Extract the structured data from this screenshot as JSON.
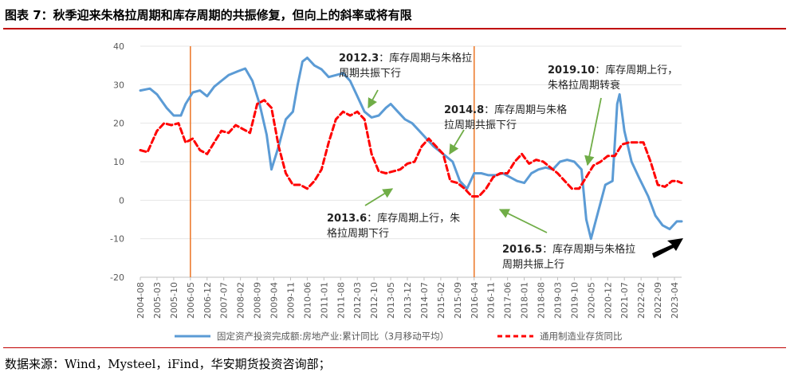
{
  "figure": {
    "title": "图表 7：秋季迎来朱格拉周期和库存周期的共振修复，但向上的斜率或将有限",
    "source": "数据来源：Wind，Mysteel，iFind，华安期货投资咨询部；"
  },
  "annotations": [
    {
      "date": "2012.3",
      "text1": "：库存周期与朱格拉",
      "text2": "周期共振下行"
    },
    {
      "date": "2014.8",
      "text1": "：库存周期与朱格",
      "text2": "拉周期共振下行"
    },
    {
      "date": "2019.10",
      "text1": "：库存周期上行，",
      "text2": "朱格拉周期转衰"
    },
    {
      "date": "2013.6",
      "text1": "：库存周期上行，朱",
      "text2": "格拉周期下行"
    },
    {
      "date": "2016.5",
      "text1": "：库存周期与朱格拉",
      "text2": "周期共振上行"
    }
  ],
  "chart_data": {
    "type": "line",
    "ylim": [
      -20,
      40
    ],
    "yticks": [
      -20,
      -10,
      0,
      10,
      20,
      30,
      40
    ],
    "x_start": "2004-08",
    "x_end": "2023-07",
    "xtick_labels": [
      "2004-08",
      "2005-03",
      "2005-10",
      "2006-05",
      "2006-12",
      "2007-07",
      "2008-02",
      "2008-09",
      "2009-04",
      "2009-11",
      "2010-06",
      "2011-01",
      "2011-08",
      "2012-03",
      "2012-10",
      "2013-05",
      "2013-12",
      "2014-07",
      "2015-02",
      "2015-09",
      "2016-04",
      "2016-11",
      "2017-06",
      "2018-01",
      "2018-08",
      "2019-03",
      "2019-10",
      "2020-05",
      "2020-12",
      "2021-07",
      "2022-02",
      "2022-09",
      "2023-04"
    ],
    "vertical_markers": [
      "2006-05",
      "2016-04"
    ],
    "legend_position": "bottom",
    "colors": {
      "series1": "#5b9bd5",
      "series2": "#ff0000",
      "markers": "#ed7d31",
      "arrows": "#70ad47"
    },
    "series": [
      {
        "name": "固定资产投资完成额:房地产业:累计同比（3月移动平均）",
        "style": "solid",
        "points": [
          [
            "2004-08",
            28.5
          ],
          [
            "2004-12",
            29.0
          ],
          [
            "2005-03",
            27.5
          ],
          [
            "2005-07",
            24
          ],
          [
            "2005-10",
            22
          ],
          [
            "2006-01",
            22
          ],
          [
            "2006-03",
            25
          ],
          [
            "2006-06",
            28
          ],
          [
            "2006-09",
            28.5
          ],
          [
            "2006-12",
            27
          ],
          [
            "2007-03",
            29.5
          ],
          [
            "2007-06",
            31
          ],
          [
            "2007-09",
            32.5
          ],
          [
            "2008-01",
            33.5
          ],
          [
            "2008-04",
            34.2
          ],
          [
            "2008-07",
            31
          ],
          [
            "2008-10",
            25
          ],
          [
            "2009-01",
            17
          ],
          [
            "2009-03",
            8
          ],
          [
            "2009-06",
            14
          ],
          [
            "2009-09",
            21
          ],
          [
            "2009-12",
            23
          ],
          [
            "2010-02",
            30
          ],
          [
            "2010-04",
            36
          ],
          [
            "2010-06",
            37
          ],
          [
            "2010-09",
            35
          ],
          [
            "2010-12",
            34
          ],
          [
            "2011-03",
            32
          ],
          [
            "2011-06",
            32.5
          ],
          [
            "2011-09",
            33
          ],
          [
            "2011-12",
            31
          ],
          [
            "2012-03",
            27
          ],
          [
            "2012-06",
            23
          ],
          [
            "2012-09",
            21.5
          ],
          [
            "2012-12",
            22
          ],
          [
            "2013-03",
            24
          ],
          [
            "2013-05",
            25
          ],
          [
            "2013-08",
            23
          ],
          [
            "2013-11",
            21
          ],
          [
            "2014-02",
            20
          ],
          [
            "2014-05",
            18
          ],
          [
            "2014-08",
            16
          ],
          [
            "2014-11",
            14
          ],
          [
            "2015-03",
            12
          ],
          [
            "2015-07",
            10
          ],
          [
            "2015-10",
            5
          ],
          [
            "2016-01",
            3
          ],
          [
            "2016-04",
            7
          ],
          [
            "2016-07",
            7
          ],
          [
            "2016-10",
            6.5
          ],
          [
            "2017-01",
            6.5
          ],
          [
            "2017-04",
            7
          ],
          [
            "2017-07",
            6
          ],
          [
            "2017-10",
            5
          ],
          [
            "2018-01",
            4.5
          ],
          [
            "2018-04",
            7
          ],
          [
            "2018-07",
            8
          ],
          [
            "2018-10",
            8.5
          ],
          [
            "2019-01",
            8
          ],
          [
            "2019-04",
            10
          ],
          [
            "2019-07",
            10.5
          ],
          [
            "2019-10",
            10
          ],
          [
            "2020-01",
            8
          ],
          [
            "2020-03",
            -5
          ],
          [
            "2020-05",
            -10
          ],
          [
            "2020-08",
            -3
          ],
          [
            "2020-11",
            4
          ],
          [
            "2021-02",
            5
          ],
          [
            "2021-04",
            25
          ],
          [
            "2021-05",
            27.5
          ],
          [
            "2021-07",
            18
          ],
          [
            "2021-10",
            10
          ],
          [
            "2022-01",
            6
          ],
          [
            "2022-05",
            1
          ],
          [
            "2022-08",
            -4
          ],
          [
            "2022-11",
            -6.5
          ],
          [
            "2023-02",
            -7.5
          ],
          [
            "2023-05",
            -5.5
          ],
          [
            "2023-07",
            -5.5
          ]
        ]
      },
      {
        "name": "通用制造业存货同比",
        "style": "dashed",
        "points": [
          [
            "2004-08",
            13
          ],
          [
            "2004-11",
            12.5
          ],
          [
            "2005-03",
            18
          ],
          [
            "2005-06",
            20
          ],
          [
            "2005-09",
            19.5
          ],
          [
            "2005-12",
            20
          ],
          [
            "2006-03",
            15
          ],
          [
            "2006-06",
            16
          ],
          [
            "2006-09",
            13
          ],
          [
            "2006-12",
            12
          ],
          [
            "2007-03",
            15
          ],
          [
            "2007-06",
            18
          ],
          [
            "2007-09",
            17.5
          ],
          [
            "2007-12",
            19.5
          ],
          [
            "2008-03",
            18.5
          ],
          [
            "2008-06",
            17.5
          ],
          [
            "2008-09",
            25
          ],
          [
            "2008-12",
            26
          ],
          [
            "2009-03",
            24
          ],
          [
            "2009-06",
            14
          ],
          [
            "2009-09",
            7
          ],
          [
            "2009-12",
            4
          ],
          [
            "2010-03",
            4
          ],
          [
            "2010-06",
            3
          ],
          [
            "2010-09",
            5
          ],
          [
            "2010-12",
            8
          ],
          [
            "2011-03",
            15
          ],
          [
            "2011-06",
            21
          ],
          [
            "2011-09",
            23
          ],
          [
            "2011-12",
            22
          ],
          [
            "2012-03",
            23
          ],
          [
            "2012-06",
            21
          ],
          [
            "2012-09",
            12
          ],
          [
            "2012-12",
            7.5
          ],
          [
            "2013-03",
            7
          ],
          [
            "2013-06",
            7.5
          ],
          [
            "2013-09",
            8
          ],
          [
            "2013-12",
            9.5
          ],
          [
            "2014-03",
            10
          ],
          [
            "2014-06",
            14
          ],
          [
            "2014-09",
            16
          ],
          [
            "2014-12",
            14
          ],
          [
            "2015-03",
            12
          ],
          [
            "2015-06",
            5
          ],
          [
            "2015-09",
            4.5
          ],
          [
            "2015-12",
            3
          ],
          [
            "2016-03",
            1
          ],
          [
            "2016-06",
            1
          ],
          [
            "2016-09",
            3
          ],
          [
            "2016-12",
            6
          ],
          [
            "2017-03",
            7
          ],
          [
            "2017-06",
            7
          ],
          [
            "2017-09",
            10
          ],
          [
            "2017-12",
            12
          ],
          [
            "2018-03",
            9.5
          ],
          [
            "2018-06",
            10.5
          ],
          [
            "2018-09",
            10
          ],
          [
            "2018-12",
            8.5
          ],
          [
            "2019-03",
            7
          ],
          [
            "2019-06",
            5
          ],
          [
            "2019-09",
            3
          ],
          [
            "2019-12",
            3
          ],
          [
            "2020-03",
            6
          ],
          [
            "2020-06",
            9
          ],
          [
            "2020-09",
            10
          ],
          [
            "2020-12",
            11.5
          ],
          [
            "2021-03",
            11.5
          ],
          [
            "2021-06",
            14.5
          ],
          [
            "2021-09",
            15
          ],
          [
            "2021-12",
            15
          ],
          [
            "2022-03",
            15
          ],
          [
            "2022-06",
            10
          ],
          [
            "2022-09",
            4
          ],
          [
            "2022-12",
            3.5
          ],
          [
            "2023-03",
            5
          ],
          [
            "2023-05",
            5
          ],
          [
            "2023-07",
            4.5
          ]
        ]
      }
    ]
  }
}
